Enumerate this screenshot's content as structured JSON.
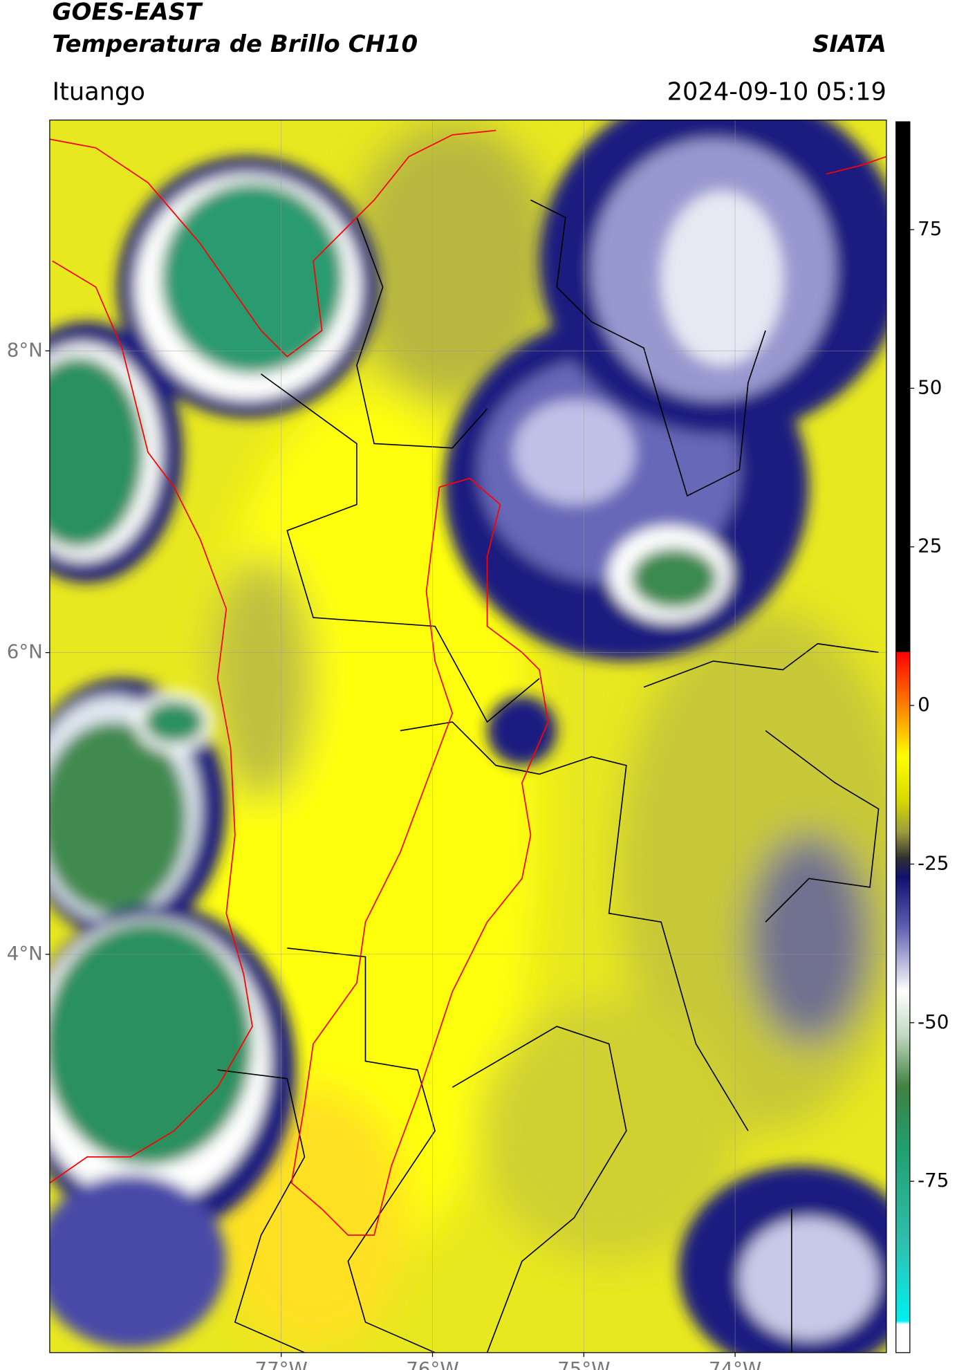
{
  "header": {
    "title": "GOES-EAST",
    "subtitle": "Temperatura de Brillo CH10",
    "source": "SIATA",
    "location": "Ituango",
    "datetime": "2024-09-10 05:19"
  },
  "map": {
    "xlim": [
      -78.53,
      -73.0
    ],
    "ylim": [
      1.36,
      9.53
    ],
    "grid": true,
    "xticks": [
      {
        "value": -77,
        "label": "77°W"
      },
      {
        "value": -76,
        "label": "76°W"
      },
      {
        "value": -75,
        "label": "75°W"
      },
      {
        "value": -74,
        "label": "74°W"
      }
    ],
    "yticks": [
      {
        "value": 8,
        "label": "8°N"
      },
      {
        "value": 6,
        "label": "6°N"
      },
      {
        "value": 4,
        "label": "4°N"
      }
    ]
  },
  "colorbar": {
    "lim": [
      -102,
      92
    ],
    "ticks": [
      75,
      50,
      25,
      0,
      -25,
      -50,
      -75
    ],
    "stops": [
      {
        "value": 92,
        "color": "#000000"
      },
      {
        "value": 8.5,
        "color": "#000000"
      },
      {
        "value": 8.4,
        "color": "#ff0000"
      },
      {
        "value": 0,
        "color": "#ff8000"
      },
      {
        "value": -8,
        "color": "#ffff00"
      },
      {
        "value": -15,
        "color": "#d8d800"
      },
      {
        "value": -20,
        "color": "#9a9a40"
      },
      {
        "value": -24,
        "color": "#303030"
      },
      {
        "value": -27,
        "color": "#101070"
      },
      {
        "value": -35,
        "color": "#6060b0"
      },
      {
        "value": -45,
        "color": "#ffffff"
      },
      {
        "value": -52,
        "color": "#c0d8c0"
      },
      {
        "value": -60,
        "color": "#408040"
      },
      {
        "value": -70,
        "color": "#20a070"
      },
      {
        "value": -85,
        "color": "#30c0b0"
      },
      {
        "value": -97,
        "color": "#00f0f0"
      },
      {
        "value": -97.5,
        "color": "#ffffff"
      },
      {
        "value": -102,
        "color": "#ffffff"
      }
    ]
  }
}
